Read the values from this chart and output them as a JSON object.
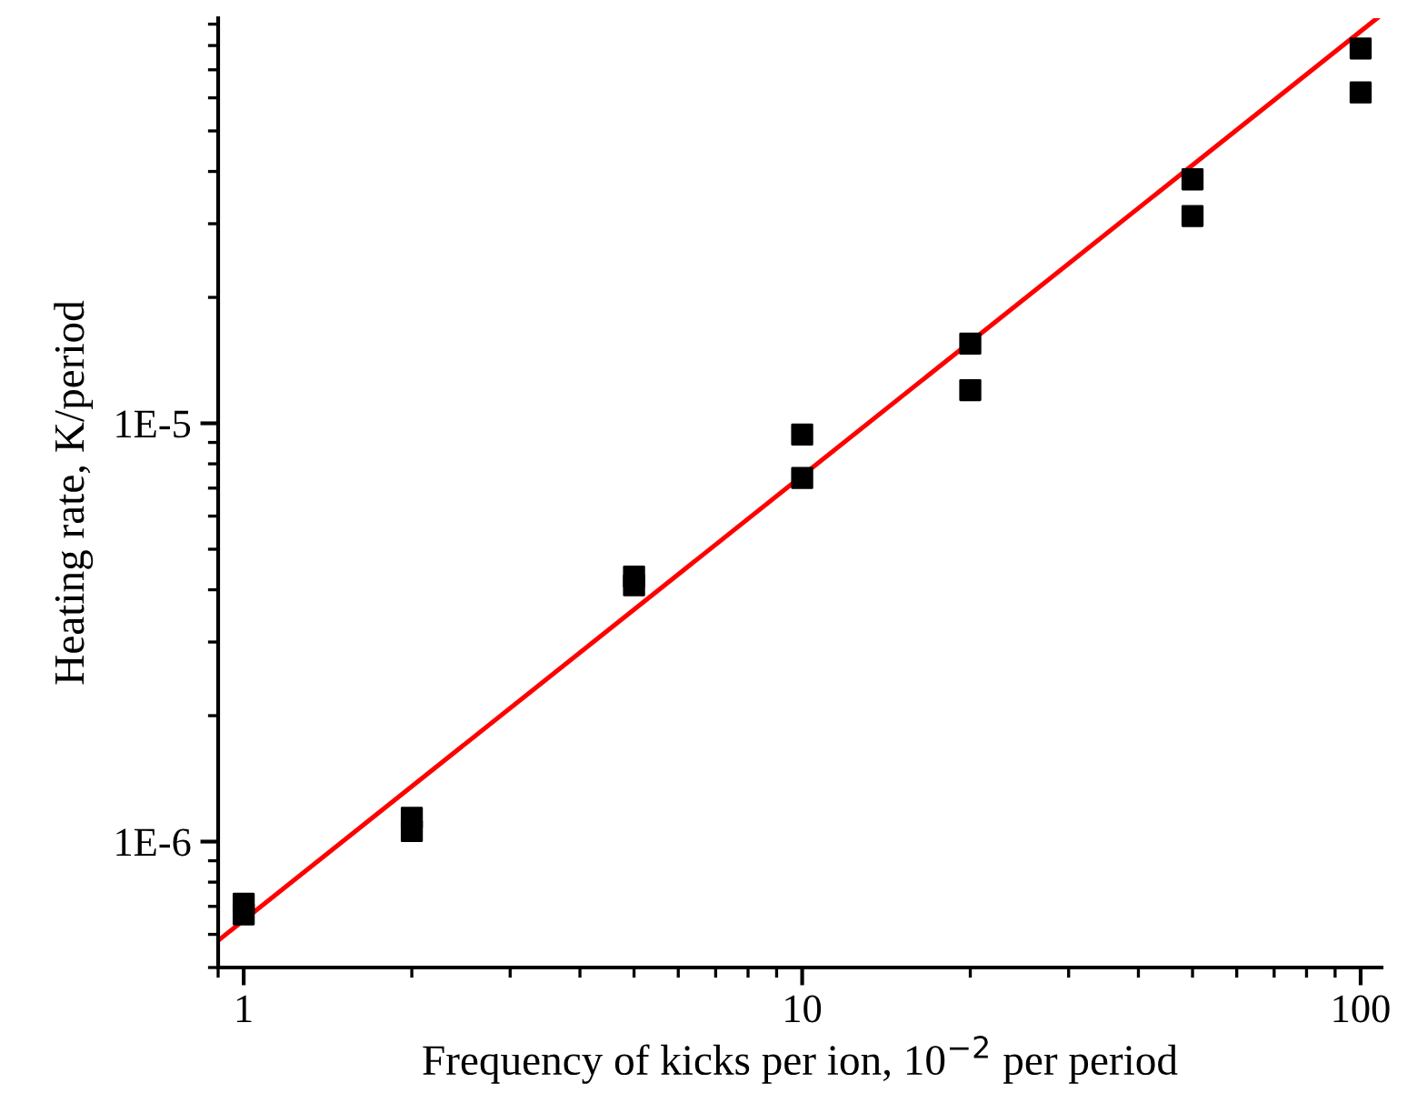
{
  "chart_data": {
    "type": "scatter",
    "xlabel": "Frequency of kicks per ion, 10$^{−2}$ per period",
    "ylabel": "Heating rate, K/period",
    "log": "xy",
    "grid": false,
    "legend": false,
    "marker": "square",
    "xlim": [
      0.9,
      109
    ],
    "ylim": [
      5e-07,
      9.3e-05
    ],
    "xticks": [
      1,
      10,
      100
    ],
    "yticks": [
      {
        "value": 1e-06,
        "label": "1E-6"
      },
      {
        "value": 1e-05,
        "label": "1E-5"
      }
    ],
    "series": [
      {
        "color": "#000000",
        "x": [
          1,
          1,
          2,
          2,
          5,
          5,
          10,
          10,
          20,
          20,
          50,
          50,
          100,
          100
        ],
        "values": [
          7.1e-07,
          6.7e-07,
          1.14e-06,
          1.06e-06,
          4.3e-06,
          4.1e-06,
          9.4e-06,
          7.4e-06,
          1.55e-05,
          1.2e-05,
          3.83e-05,
          3.13e-05,
          7.87e-05,
          6.18e-05
        ]
      },
      {
        "type": "line",
        "color": "#ff0000",
        "marker": "none",
        "line_style": "solid",
        "x": [
          0.9,
          107
        ],
        "values": [
          5.8e-07,
          9.3e-05
        ]
      }
    ]
  }
}
